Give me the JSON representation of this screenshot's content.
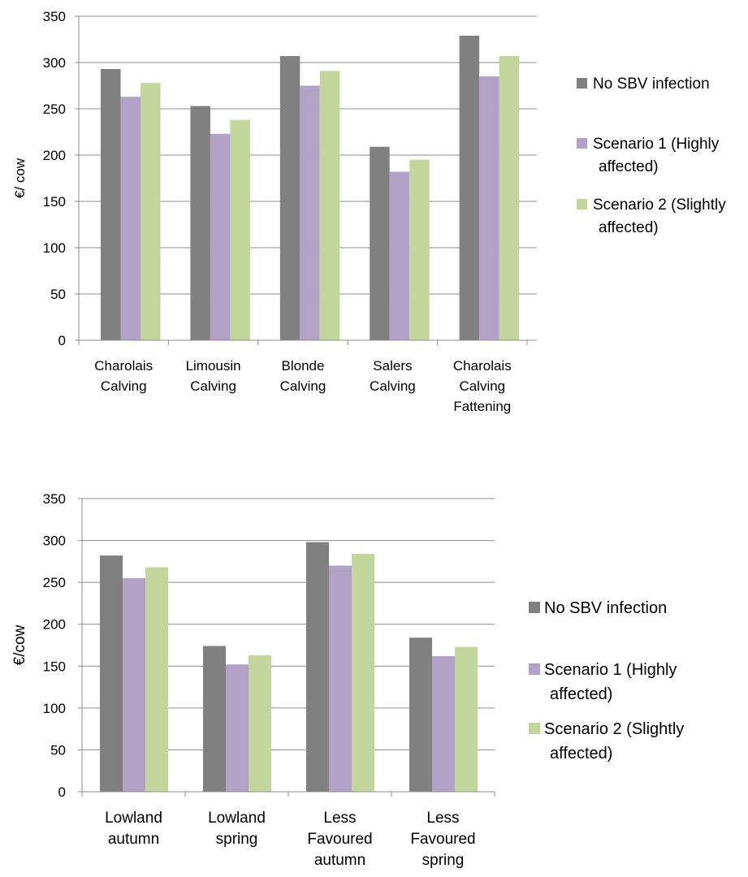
{
  "colors": {
    "no_sbv": "#808080",
    "scenario1": "#b3a2c7",
    "scenario2": "#c3d69b",
    "grid": "#8c8c8c"
  },
  "chart_data": [
    {
      "type": "bar",
      "title": "",
      "xlabel": "",
      "ylabel": "€/ cow",
      "ylim": [
        0,
        350
      ],
      "yticks": [
        0,
        50,
        100,
        150,
        200,
        250,
        300,
        350
      ],
      "grid": true,
      "legend_position": "right",
      "categories": [
        [
          "Charolais",
          "Calving"
        ],
        [
          "Limousin",
          "Calving"
        ],
        [
          "Blonde",
          "Calving"
        ],
        [
          "Salers",
          "Calving"
        ],
        [
          "Charolais",
          "Calving",
          "Fattening"
        ]
      ],
      "series": [
        {
          "name": [
            "No SBV infection"
          ],
          "color": "#808080",
          "values": [
            293,
            253,
            307,
            209,
            329
          ]
        },
        {
          "name": [
            "Scenario 1 (Highly",
            "affected)"
          ],
          "color": "#b3a2c7",
          "values": [
            263,
            223,
            275,
            182,
            285
          ]
        },
        {
          "name": [
            "Scenario 2 (Slightly",
            "affected)"
          ],
          "color": "#c3d69b",
          "values": [
            278,
            238,
            291,
            195,
            307
          ]
        }
      ]
    },
    {
      "type": "bar",
      "title": "",
      "xlabel": "",
      "ylabel": "€/cow",
      "ylim": [
        0,
        350
      ],
      "yticks": [
        0,
        50,
        100,
        150,
        200,
        250,
        300,
        350
      ],
      "grid": true,
      "legend_position": "right",
      "categories": [
        [
          "Lowland",
          "autumn"
        ],
        [
          "Lowland",
          "spring"
        ],
        [
          "Less",
          "Favoured",
          "autumn"
        ],
        [
          "Less",
          "Favoured",
          "spring"
        ]
      ],
      "series": [
        {
          "name": [
            "No SBV infection"
          ],
          "color": "#808080",
          "values": [
            282,
            174,
            298,
            184
          ]
        },
        {
          "name": [
            "Scenario 1 (Highly",
            "affected)"
          ],
          "color": "#b3a2c7",
          "values": [
            255,
            152,
            270,
            162
          ]
        },
        {
          "name": [
            "Scenario 2 (Slightly",
            "affected)"
          ],
          "color": "#c3d69b",
          "values": [
            268,
            163,
            284,
            173
          ]
        }
      ]
    }
  ]
}
